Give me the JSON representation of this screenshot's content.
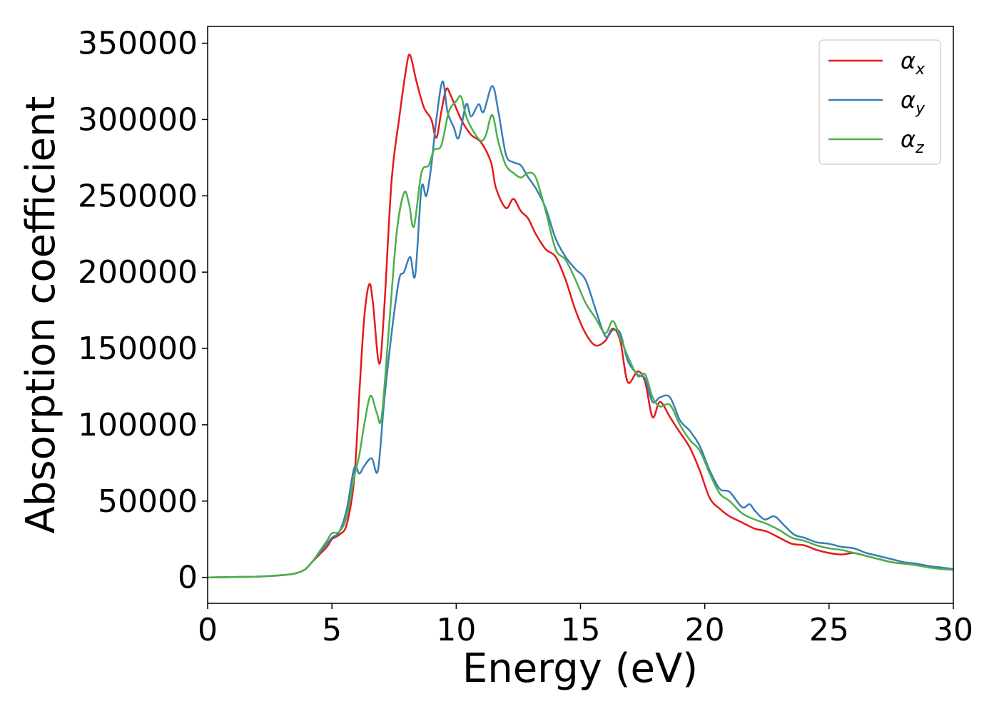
{
  "chart_data": {
    "type": "line",
    "xlabel": "Energy (eV)",
    "ylabel": "Absorption coefficient",
    "xlim": [
      0,
      30
    ],
    "ylim": [
      -17000,
      361000
    ],
    "xticks": [
      0,
      5,
      10,
      15,
      20,
      25,
      30
    ],
    "yticks": [
      0,
      50000,
      100000,
      150000,
      200000,
      250000,
      300000,
      350000
    ],
    "xtick_labels": [
      "0",
      "5",
      "10",
      "15",
      "20",
      "25",
      "30"
    ],
    "ytick_labels": [
      "0",
      "50000",
      "100000",
      "150000",
      "200000",
      "250000",
      "300000",
      "350000"
    ],
    "grid": false,
    "legend_position": "top-right",
    "series": [
      {
        "name": "αx",
        "symbol": "α",
        "sub": "x",
        "color": "#e41a1c",
        "x": [
          0,
          2,
          3,
          3.5,
          3.9,
          4.2,
          4.5,
          4.8,
          5.0,
          5.3,
          5.6,
          5.9,
          6.1,
          6.3,
          6.5,
          6.65,
          6.9,
          7.1,
          7.4,
          7.7,
          8.0,
          8.15,
          8.4,
          8.7,
          9.0,
          9.2,
          9.4,
          9.6,
          9.8,
          10.2,
          10.6,
          11.0,
          11.4,
          11.6,
          12.0,
          12.3,
          12.6,
          12.9,
          13.2,
          13.6,
          14.0,
          14.4,
          14.8,
          15.2,
          15.6,
          16.0,
          16.3,
          16.6,
          16.9,
          17.3,
          17.6,
          17.9,
          18.2,
          18.6,
          19.0,
          19.4,
          19.8,
          20.2,
          20.6,
          21.0,
          21.5,
          22.0,
          22.5,
          23.0,
          23.5,
          24.0,
          24.5,
          25.0,
          25.5,
          26.0,
          26.5,
          27.0,
          27.5,
          28.0,
          28.5,
          29.0,
          29.5,
          30.0
        ],
        "y": [
          0,
          500,
          1500,
          2500,
          5000,
          10000,
          15000,
          20000,
          25000,
          28000,
          35000,
          65000,
          120000,
          170000,
          192000,
          180000,
          140000,
          175000,
          260000,
          300000,
          335000,
          342000,
          325000,
          308000,
          300000,
          288000,
          305000,
          320000,
          315000,
          300000,
          290000,
          285000,
          272000,
          255000,
          242000,
          248000,
          240000,
          235000,
          225000,
          215000,
          210000,
          195000,
          175000,
          160000,
          152000,
          155000,
          163000,
          155000,
          128000,
          135000,
          128000,
          105000,
          115000,
          105000,
          95000,
          85000,
          70000,
          52000,
          45000,
          40000,
          36000,
          32000,
          30000,
          26000,
          22000,
          21000,
          18000,
          16000,
          15000,
          16000,
          14000,
          12000,
          10000,
          9000,
          8500,
          7000,
          6000,
          5000
        ]
      },
      {
        "name": "αy",
        "symbol": "α",
        "sub": "y",
        "color": "#377eb8",
        "x": [
          0,
          2,
          3,
          3.5,
          3.9,
          4.2,
          4.5,
          4.8,
          5.0,
          5.3,
          5.6,
          5.9,
          6.1,
          6.3,
          6.6,
          6.85,
          7.1,
          7.4,
          7.7,
          7.9,
          8.15,
          8.35,
          8.6,
          8.8,
          9.0,
          9.2,
          9.45,
          9.65,
          9.9,
          10.1,
          10.4,
          10.6,
          10.9,
          11.1,
          11.45,
          11.7,
          12.0,
          12.3,
          12.6,
          12.9,
          13.2,
          13.6,
          14.0,
          14.4,
          14.8,
          15.2,
          15.6,
          16.0,
          16.3,
          16.6,
          16.9,
          17.3,
          17.6,
          17.9,
          18.2,
          18.6,
          19.0,
          19.4,
          19.8,
          20.2,
          20.6,
          21.0,
          21.5,
          21.8,
          22.0,
          22.4,
          22.8,
          23.2,
          23.6,
          24.0,
          24.5,
          25.0,
          25.5,
          26.0,
          26.5,
          27.0,
          27.5,
          28.0,
          28.5,
          29.0,
          29.5,
          30.0
        ],
        "y": [
          0,
          500,
          1500,
          2500,
          5000,
          10000,
          16000,
          22000,
          26000,
          30000,
          45000,
          72000,
          68000,
          73000,
          78000,
          70000,
          115000,
          160000,
          195000,
          200000,
          210000,
          198000,
          255000,
          250000,
          270000,
          300000,
          325000,
          305000,
          295000,
          288000,
          310000,
          302000,
          310000,
          305000,
          322000,
          305000,
          277000,
          272000,
          270000,
          262000,
          255000,
          242000,
          222000,
          210000,
          202000,
          195000,
          176000,
          158000,
          162000,
          160000,
          142000,
          133000,
          130000,
          115000,
          118000,
          118000,
          103000,
          96000,
          86000,
          70000,
          58000,
          56000,
          46000,
          48000,
          44000,
          38000,
          40000,
          34000,
          28000,
          26000,
          23000,
          22000,
          20000,
          19000,
          16000,
          14000,
          12000,
          10000,
          9000,
          7500,
          6500,
          5500
        ]
      },
      {
        "name": "αz",
        "symbol": "α",
        "sub": "z",
        "color": "#4daf4a",
        "x": [
          0,
          2,
          3,
          3.5,
          3.9,
          4.2,
          4.5,
          4.8,
          5.0,
          5.3,
          5.6,
          5.9,
          6.1,
          6.3,
          6.55,
          6.8,
          7.0,
          7.3,
          7.6,
          7.9,
          8.1,
          8.3,
          8.6,
          8.9,
          9.1,
          9.4,
          9.7,
          10.0,
          10.2,
          10.4,
          10.7,
          11.0,
          11.2,
          11.45,
          11.7,
          12.0,
          12.3,
          12.6,
          12.9,
          13.2,
          13.6,
          14.0,
          14.4,
          14.8,
          15.2,
          15.6,
          16.0,
          16.3,
          16.6,
          16.9,
          17.3,
          17.6,
          17.9,
          18.2,
          18.6,
          19.0,
          19.4,
          19.8,
          20.2,
          20.6,
          21.0,
          21.5,
          22.0,
          22.5,
          23.0,
          23.5,
          24.0,
          24.5,
          25.0,
          25.5,
          26.0,
          26.5,
          27.0,
          27.5,
          28.0,
          28.5,
          29.0,
          29.5,
          30.0
        ],
        "y": [
          0,
          500,
          1500,
          2500,
          5000,
          10000,
          17000,
          24000,
          29000,
          30000,
          40000,
          66000,
          80000,
          100000,
          119000,
          108000,
          105000,
          165000,
          225000,
          252000,
          245000,
          230000,
          265000,
          270000,
          280000,
          283000,
          305000,
          312000,
          315000,
          302000,
          292000,
          286000,
          290000,
          303000,
          285000,
          270000,
          265000,
          262000,
          265000,
          262000,
          240000,
          215000,
          208000,
          195000,
          180000,
          170000,
          160000,
          168000,
          157000,
          145000,
          132000,
          133000,
          118000,
          112000,
          113000,
          100000,
          90000,
          83000,
          68000,
          55000,
          50000,
          42000,
          38000,
          35000,
          31000,
          26000,
          24000,
          21000,
          19000,
          18000,
          16000,
          14000,
          12000,
          10000,
          9000,
          8000,
          6500,
          5500,
          5000
        ]
      }
    ]
  }
}
